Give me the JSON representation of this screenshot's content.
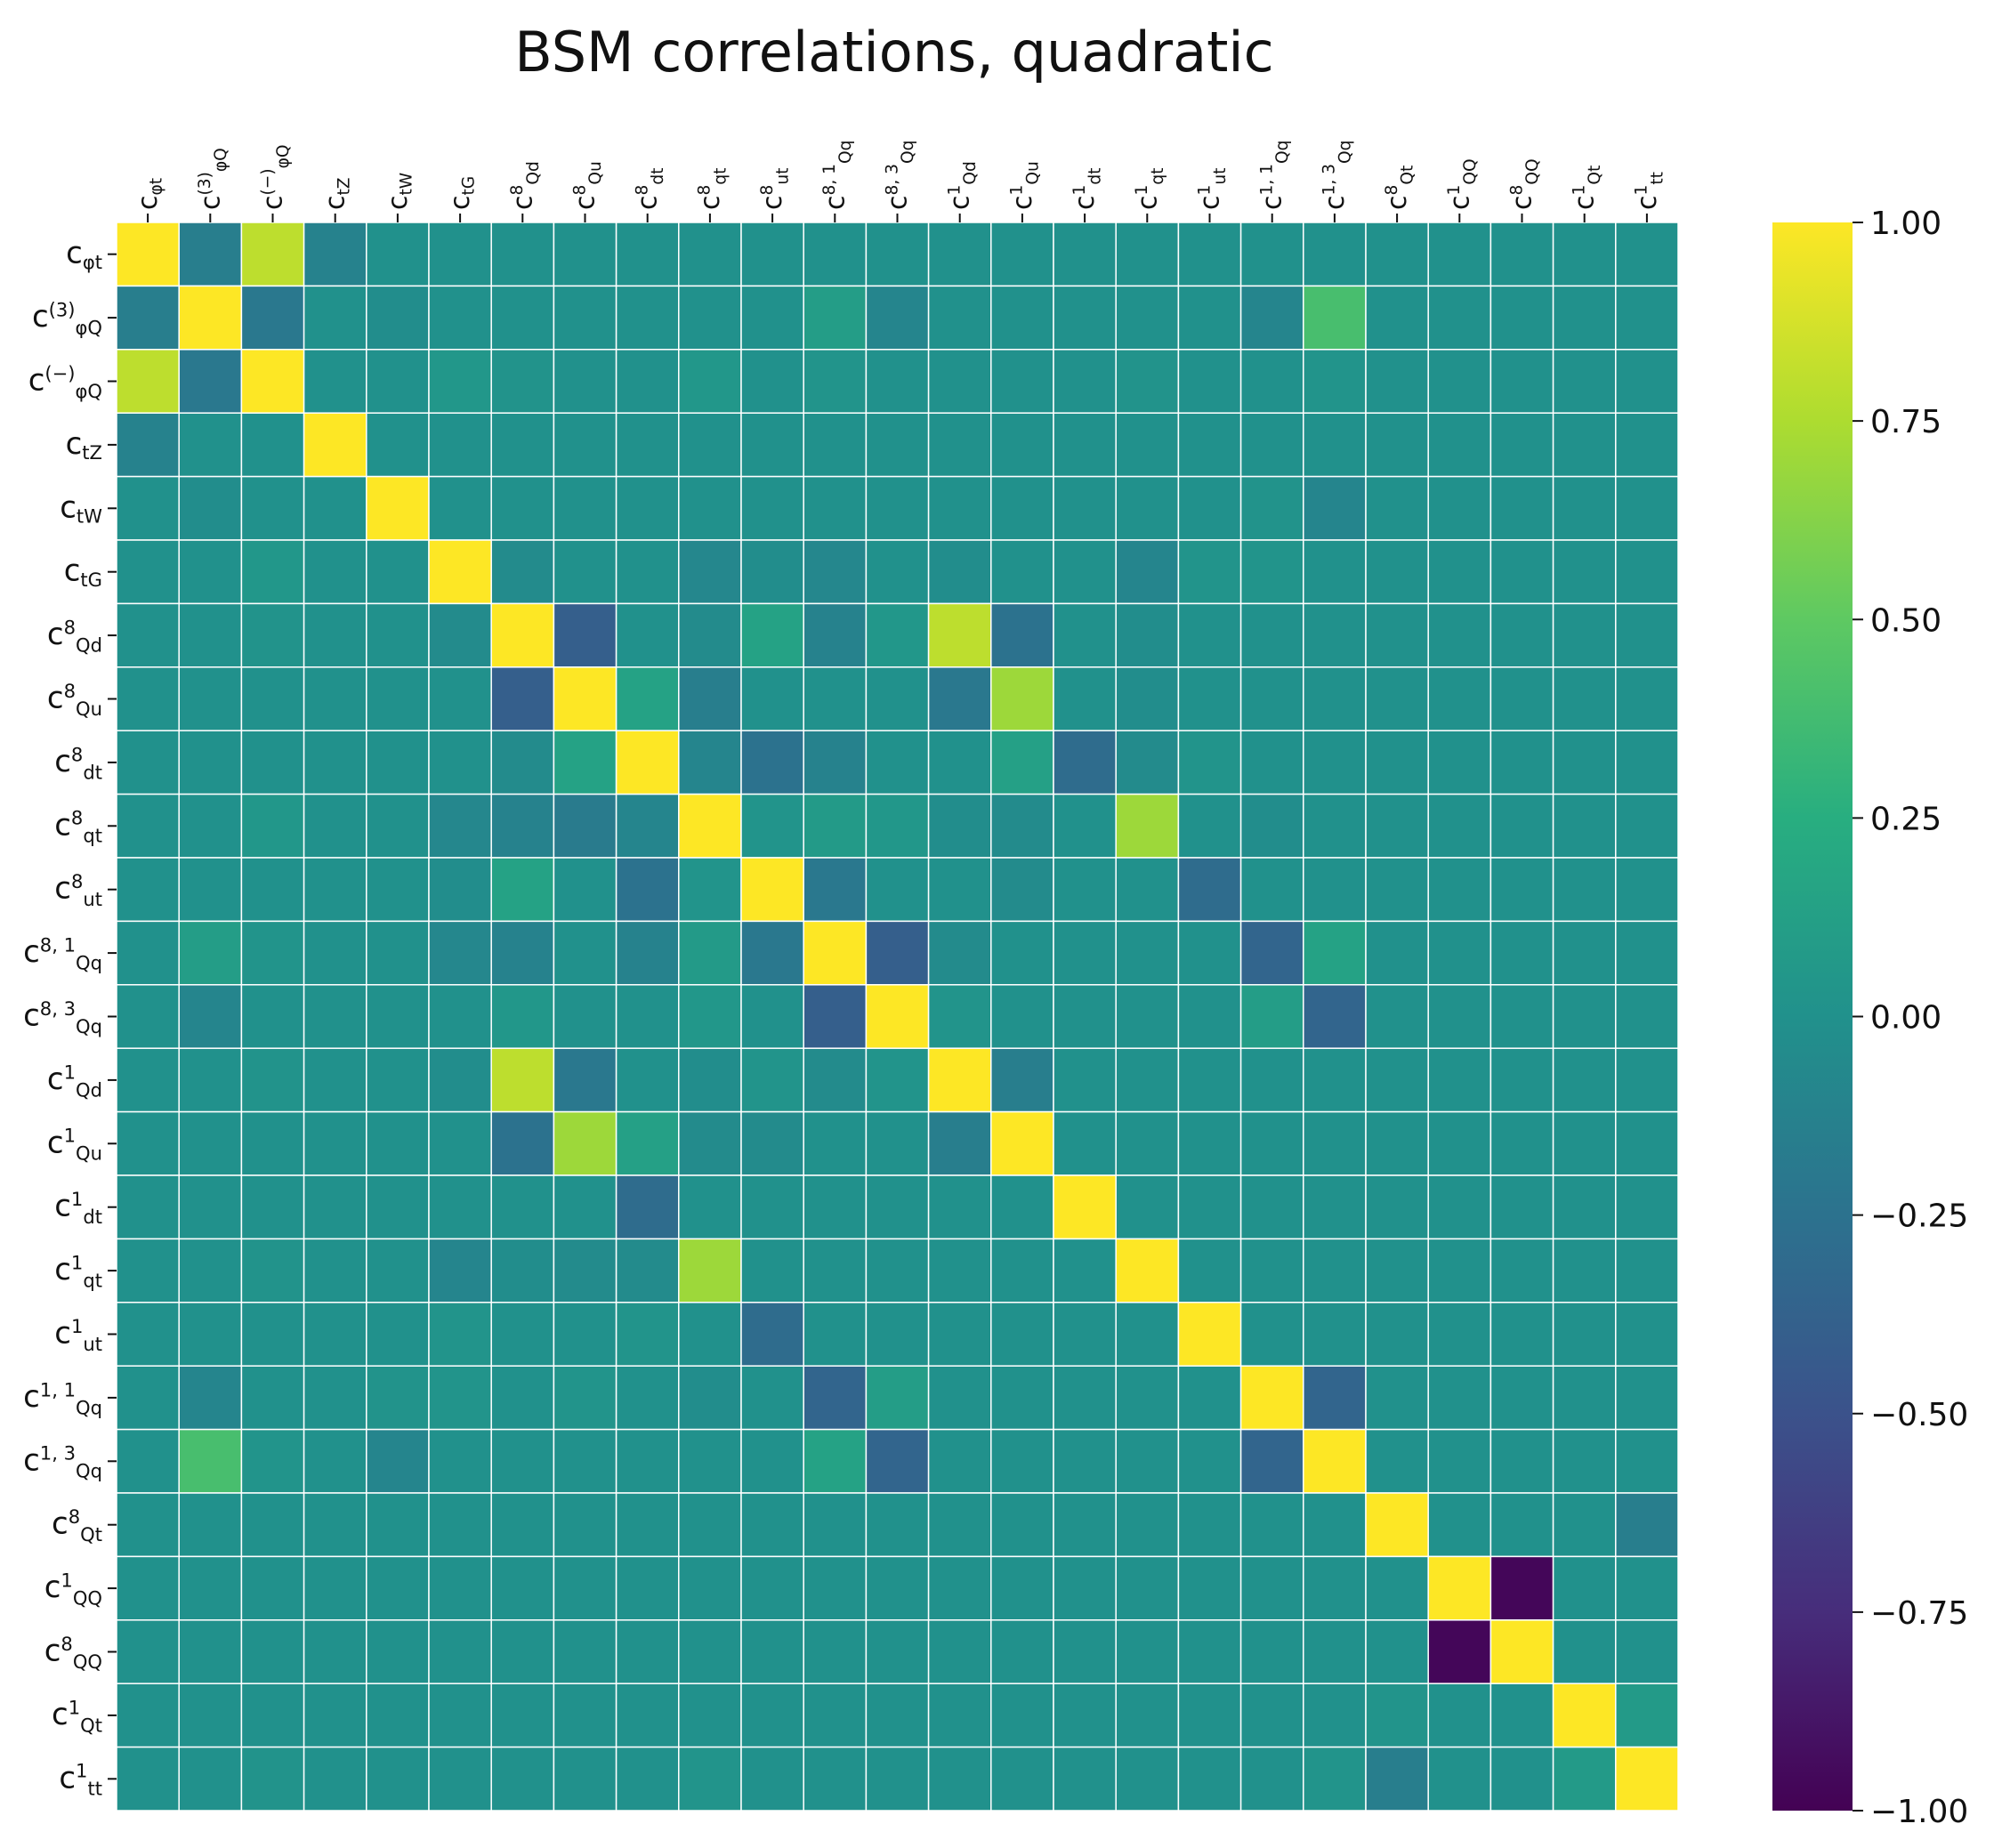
{
  "chart_data": {
    "type": "heatmap",
    "title": "BSM correlations, quadratic",
    "colormap": "viridis",
    "vmin": -1.0,
    "vmax": 1.0,
    "colorbar_ticks": [
      "1.00",
      "0.75",
      "0.50",
      "0.25",
      "0.00",
      "−0.25",
      "−0.50",
      "−0.75",
      "−1.00"
    ],
    "colorbar_tick_values": [
      1.0,
      0.75,
      0.5,
      0.25,
      0.0,
      -0.25,
      -0.5,
      -0.75,
      -1.0
    ],
    "labels": [
      {
        "base": "c",
        "sub": "φt",
        "sup": ""
      },
      {
        "base": "c",
        "sub": "φQ",
        "sup": "(3)"
      },
      {
        "base": "c",
        "sub": "φQ",
        "sup": "(−)"
      },
      {
        "base": "c",
        "sub": "tZ",
        "sup": ""
      },
      {
        "base": "c",
        "sub": "tW",
        "sup": ""
      },
      {
        "base": "c",
        "sub": "tG",
        "sup": ""
      },
      {
        "base": "c",
        "sub": "Qd",
        "sup": "8"
      },
      {
        "base": "c",
        "sub": "Qu",
        "sup": "8"
      },
      {
        "base": "c",
        "sub": "dt",
        "sup": "8"
      },
      {
        "base": "c",
        "sub": "qt",
        "sup": "8"
      },
      {
        "base": "c",
        "sub": "ut",
        "sup": "8"
      },
      {
        "base": "c",
        "sub": "Qq",
        "sup": "8, 1"
      },
      {
        "base": "c",
        "sub": "Qq",
        "sup": "8, 3"
      },
      {
        "base": "c",
        "sub": "Qd",
        "sup": "1"
      },
      {
        "base": "c",
        "sub": "Qu",
        "sup": "1"
      },
      {
        "base": "c",
        "sub": "dt",
        "sup": "1"
      },
      {
        "base": "c",
        "sub": "qt",
        "sup": "1"
      },
      {
        "base": "c",
        "sub": "ut",
        "sup": "1"
      },
      {
        "base": "c",
        "sub": "Qq",
        "sup": "1, 1"
      },
      {
        "base": "c",
        "sub": "Qq",
        "sup": "1, 3"
      },
      {
        "base": "c",
        "sub": "Qt",
        "sup": "8"
      },
      {
        "base": "c",
        "sub": "QQ",
        "sup": "1"
      },
      {
        "base": "c",
        "sub": "QQ",
        "sup": "8"
      },
      {
        "base": "c",
        "sub": "Qt",
        "sup": "1"
      },
      {
        "base": "c",
        "sub": "tt",
        "sup": "1"
      }
    ],
    "z": [
      [
        1.0,
        -0.15,
        0.8,
        -0.12,
        0.0,
        0.0,
        0.0,
        0.0,
        0.0,
        0.0,
        0.0,
        0.0,
        0.0,
        0.0,
        0.0,
        0.0,
        0.0,
        0.0,
        0.0,
        0.0,
        0.0,
        0.0,
        0.0,
        0.0,
        0.0
      ],
      [
        -0.15,
        1.0,
        -0.2,
        0.0,
        -0.03,
        0.0,
        0.0,
        0.0,
        0.0,
        0.0,
        0.0,
        0.1,
        -0.1,
        0.0,
        0.0,
        0.0,
        0.0,
        0.0,
        -0.1,
        0.4,
        0.0,
        0.0,
        0.0,
        0.0,
        0.0
      ],
      [
        0.8,
        -0.2,
        1.0,
        0.0,
        0.0,
        0.05,
        0.02,
        0.0,
        0.0,
        0.05,
        0.0,
        0.03,
        0.0,
        0.0,
        0.0,
        0.0,
        0.02,
        0.0,
        0.0,
        0.03,
        0.0,
        0.0,
        0.0,
        0.0,
        0.0
      ],
      [
        -0.12,
        0.0,
        0.0,
        1.0,
        0.0,
        0.0,
        0.0,
        0.0,
        0.0,
        0.0,
        0.0,
        0.0,
        0.0,
        0.0,
        0.0,
        0.0,
        0.0,
        0.0,
        0.0,
        0.0,
        0.0,
        0.0,
        0.0,
        0.0,
        0.0
      ],
      [
        0.0,
        -0.03,
        0.0,
        0.0,
        1.0,
        0.0,
        0.0,
        0.0,
        0.0,
        0.0,
        0.0,
        0.0,
        0.0,
        0.0,
        0.0,
        0.0,
        0.0,
        0.0,
        0.02,
        -0.1,
        0.0,
        0.0,
        0.0,
        0.0,
        0.0
      ],
      [
        0.0,
        0.0,
        0.05,
        0.0,
        0.0,
        1.0,
        -0.05,
        0.0,
        0.0,
        -0.08,
        -0.03,
        -0.08,
        0.0,
        -0.03,
        0.0,
        0.0,
        -0.1,
        0.03,
        0.03,
        0.0,
        0.0,
        0.0,
        0.0,
        0.0,
        0.0
      ],
      [
        0.0,
        0.0,
        0.02,
        0.0,
        0.0,
        -0.05,
        1.0,
        -0.4,
        0.0,
        -0.05,
        0.15,
        -0.12,
        0.05,
        0.8,
        -0.25,
        0.0,
        -0.03,
        0.0,
        0.0,
        0.0,
        0.0,
        0.0,
        0.0,
        0.0,
        0.0
      ],
      [
        0.0,
        0.0,
        0.0,
        0.0,
        0.0,
        0.0,
        -0.4,
        1.0,
        0.15,
        -0.15,
        0.0,
        0.0,
        0.0,
        -0.2,
        0.7,
        0.0,
        -0.03,
        0.0,
        0.0,
        0.0,
        0.0,
        0.0,
        0.0,
        0.0,
        0.0
      ],
      [
        0.0,
        0.0,
        0.0,
        0.0,
        0.0,
        0.0,
        -0.05,
        0.15,
        1.0,
        -0.1,
        -0.25,
        -0.12,
        0.0,
        0.0,
        0.13,
        -0.3,
        -0.05,
        0.03,
        0.0,
        0.0,
        0.0,
        0.0,
        0.0,
        0.0,
        0.0
      ],
      [
        0.0,
        0.0,
        0.05,
        0.0,
        0.0,
        -0.08,
        -0.12,
        -0.18,
        -0.1,
        1.0,
        0.03,
        0.08,
        0.05,
        -0.03,
        -0.05,
        0.0,
        0.7,
        0.0,
        -0.03,
        0.0,
        0.0,
        0.0,
        0.0,
        0.0,
        0.0
      ],
      [
        0.0,
        0.0,
        0.0,
        0.0,
        0.0,
        -0.03,
        0.15,
        0.0,
        -0.25,
        0.03,
        1.0,
        -0.2,
        0.0,
        0.0,
        -0.05,
        0.0,
        0.0,
        -0.3,
        0.0,
        0.0,
        0.0,
        0.0,
        0.0,
        0.0,
        0.0
      ],
      [
        0.0,
        0.1,
        0.03,
        0.0,
        0.0,
        -0.08,
        -0.12,
        0.0,
        -0.12,
        0.08,
        -0.2,
        1.0,
        -0.4,
        -0.05,
        0.0,
        0.0,
        0.0,
        0.0,
        -0.35,
        0.15,
        0.0,
        0.0,
        0.0,
        0.0,
        0.0
      ],
      [
        0.0,
        -0.1,
        0.0,
        0.0,
        0.0,
        0.0,
        0.05,
        0.0,
        0.0,
        0.05,
        0.0,
        -0.4,
        1.0,
        0.03,
        0.0,
        0.0,
        0.0,
        0.0,
        0.1,
        -0.35,
        0.0,
        0.0,
        0.0,
        0.0,
        0.0
      ],
      [
        0.0,
        0.0,
        0.02,
        0.0,
        0.0,
        -0.03,
        0.8,
        -0.2,
        0.0,
        -0.03,
        0.03,
        -0.05,
        0.03,
        1.0,
        -0.15,
        0.0,
        0.0,
        0.0,
        0.0,
        0.0,
        0.0,
        0.0,
        0.0,
        0.0,
        0.0
      ],
      [
        0.0,
        0.0,
        0.0,
        0.0,
        0.0,
        0.0,
        -0.25,
        0.7,
        0.13,
        -0.05,
        -0.05,
        0.0,
        0.0,
        -0.15,
        1.0,
        0.0,
        0.0,
        0.0,
        0.0,
        0.0,
        0.0,
        0.0,
        0.0,
        0.0,
        0.0
      ],
      [
        0.0,
        0.0,
        0.0,
        0.0,
        0.0,
        0.0,
        0.0,
        0.0,
        -0.3,
        0.0,
        0.0,
        0.0,
        0.0,
        0.0,
        0.0,
        1.0,
        0.0,
        0.0,
        0.0,
        0.0,
        0.0,
        0.0,
        0.0,
        0.0,
        0.0
      ],
      [
        0.0,
        0.0,
        0.02,
        0.0,
        0.0,
        -0.1,
        -0.03,
        -0.05,
        -0.05,
        0.7,
        0.0,
        0.0,
        0.0,
        0.0,
        0.0,
        0.0,
        1.0,
        0.0,
        0.0,
        0.0,
        0.0,
        0.0,
        0.0,
        0.0,
        0.0
      ],
      [
        0.0,
        0.0,
        0.0,
        0.0,
        0.0,
        0.03,
        0.0,
        0.0,
        0.03,
        0.0,
        -0.3,
        0.0,
        0.0,
        0.0,
        0.0,
        0.0,
        0.0,
        1.0,
        0.0,
        0.0,
        0.0,
        0.0,
        0.0,
        0.0,
        0.0
      ],
      [
        0.0,
        -0.1,
        0.0,
        0.0,
        0.02,
        0.03,
        0.0,
        0.03,
        0.0,
        -0.03,
        0.0,
        -0.35,
        0.1,
        0.0,
        0.0,
        0.0,
        0.0,
        0.0,
        1.0,
        -0.35,
        0.0,
        0.0,
        0.0,
        0.0,
        0.0
      ],
      [
        0.0,
        0.4,
        0.03,
        0.0,
        -0.1,
        0.0,
        0.0,
        0.0,
        0.0,
        0.0,
        0.0,
        0.15,
        -0.35,
        0.0,
        0.0,
        0.0,
        0.0,
        0.0,
        -0.35,
        1.0,
        0.0,
        0.0,
        0.0,
        0.0,
        0.0
      ],
      [
        0.0,
        0.0,
        0.0,
        0.0,
        0.0,
        0.0,
        0.0,
        0.0,
        0.0,
        0.0,
        0.0,
        0.0,
        0.0,
        0.0,
        0.0,
        0.0,
        0.0,
        0.0,
        0.0,
        0.0,
        1.0,
        0.0,
        0.0,
        0.0,
        -0.15
      ],
      [
        0.0,
        0.0,
        0.0,
        0.0,
        0.0,
        0.0,
        0.0,
        0.0,
        0.0,
        0.0,
        0.0,
        0.0,
        0.0,
        0.0,
        0.0,
        0.0,
        0.0,
        0.0,
        0.0,
        0.0,
        0.0,
        1.0,
        -0.97,
        0.0,
        0.0
      ],
      [
        0.0,
        0.0,
        0.0,
        0.0,
        0.0,
        0.0,
        0.0,
        0.0,
        0.0,
        0.0,
        0.0,
        0.0,
        0.0,
        0.0,
        0.0,
        0.0,
        0.0,
        0.0,
        0.0,
        0.0,
        0.0,
        -0.97,
        1.0,
        0.0,
        0.0
      ],
      [
        0.0,
        0.0,
        0.0,
        0.0,
        0.0,
        0.0,
        0.0,
        0.0,
        0.0,
        0.0,
        0.0,
        0.0,
        0.0,
        0.0,
        0.0,
        0.0,
        0.0,
        0.0,
        0.0,
        0.0,
        0.03,
        0.0,
        0.0,
        1.0,
        0.08
      ],
      [
        0.0,
        0.0,
        0.02,
        0.0,
        0.0,
        0.0,
        0.0,
        0.0,
        0.0,
        0.03,
        0.0,
        0.0,
        0.0,
        0.0,
        0.0,
        0.0,
        0.0,
        0.0,
        0.0,
        0.03,
        -0.15,
        0.0,
        0.0,
        0.08,
        1.0
      ]
    ]
  }
}
